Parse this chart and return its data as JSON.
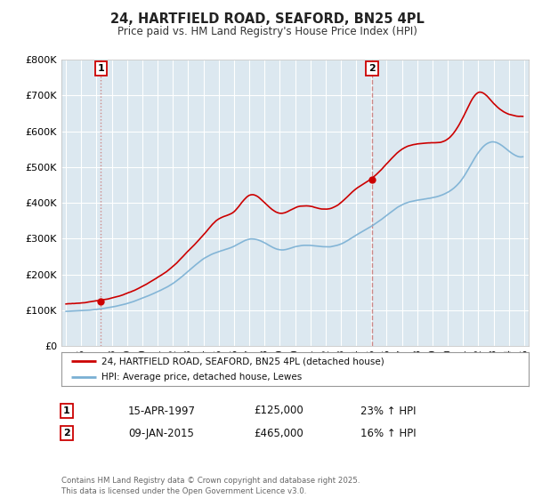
{
  "title1": "24, HARTFIELD ROAD, SEAFORD, BN25 4PL",
  "title2": "Price paid vs. HM Land Registry's House Price Index (HPI)",
  "legend_label1": "24, HARTFIELD ROAD, SEAFORD, BN25 4PL (detached house)",
  "legend_label2": "HPI: Average price, detached house, Lewes",
  "sale1_date": "15-APR-1997",
  "sale1_price": 125000,
  "sale1_label": "£125,000",
  "sale1_hpi": "23% ↑ HPI",
  "sale2_date": "09-JAN-2015",
  "sale2_price": 465000,
  "sale2_label": "£465,000",
  "sale2_hpi": "16% ↑ HPI",
  "footer": "Contains HM Land Registry data © Crown copyright and database right 2025.\nThis data is licensed under the Open Government Licence v3.0.",
  "line1_color": "#cc0000",
  "line2_color": "#7ab0d4",
  "vline1_color": "#cc8888",
  "vline2_color": "#cc8888",
  "dot_color": "#cc0000",
  "plot_bg_color": "#dce8f0",
  "grid_color": "#ffffff",
  "ylim": [
    0,
    800000
  ],
  "ytick_max": 800000,
  "xlim_start": 1994.7,
  "xlim_end": 2025.3,
  "sale1_x": 1997.29,
  "sale1_y": 125000,
  "sale2_x": 2015.04,
  "sale2_y": 465000
}
